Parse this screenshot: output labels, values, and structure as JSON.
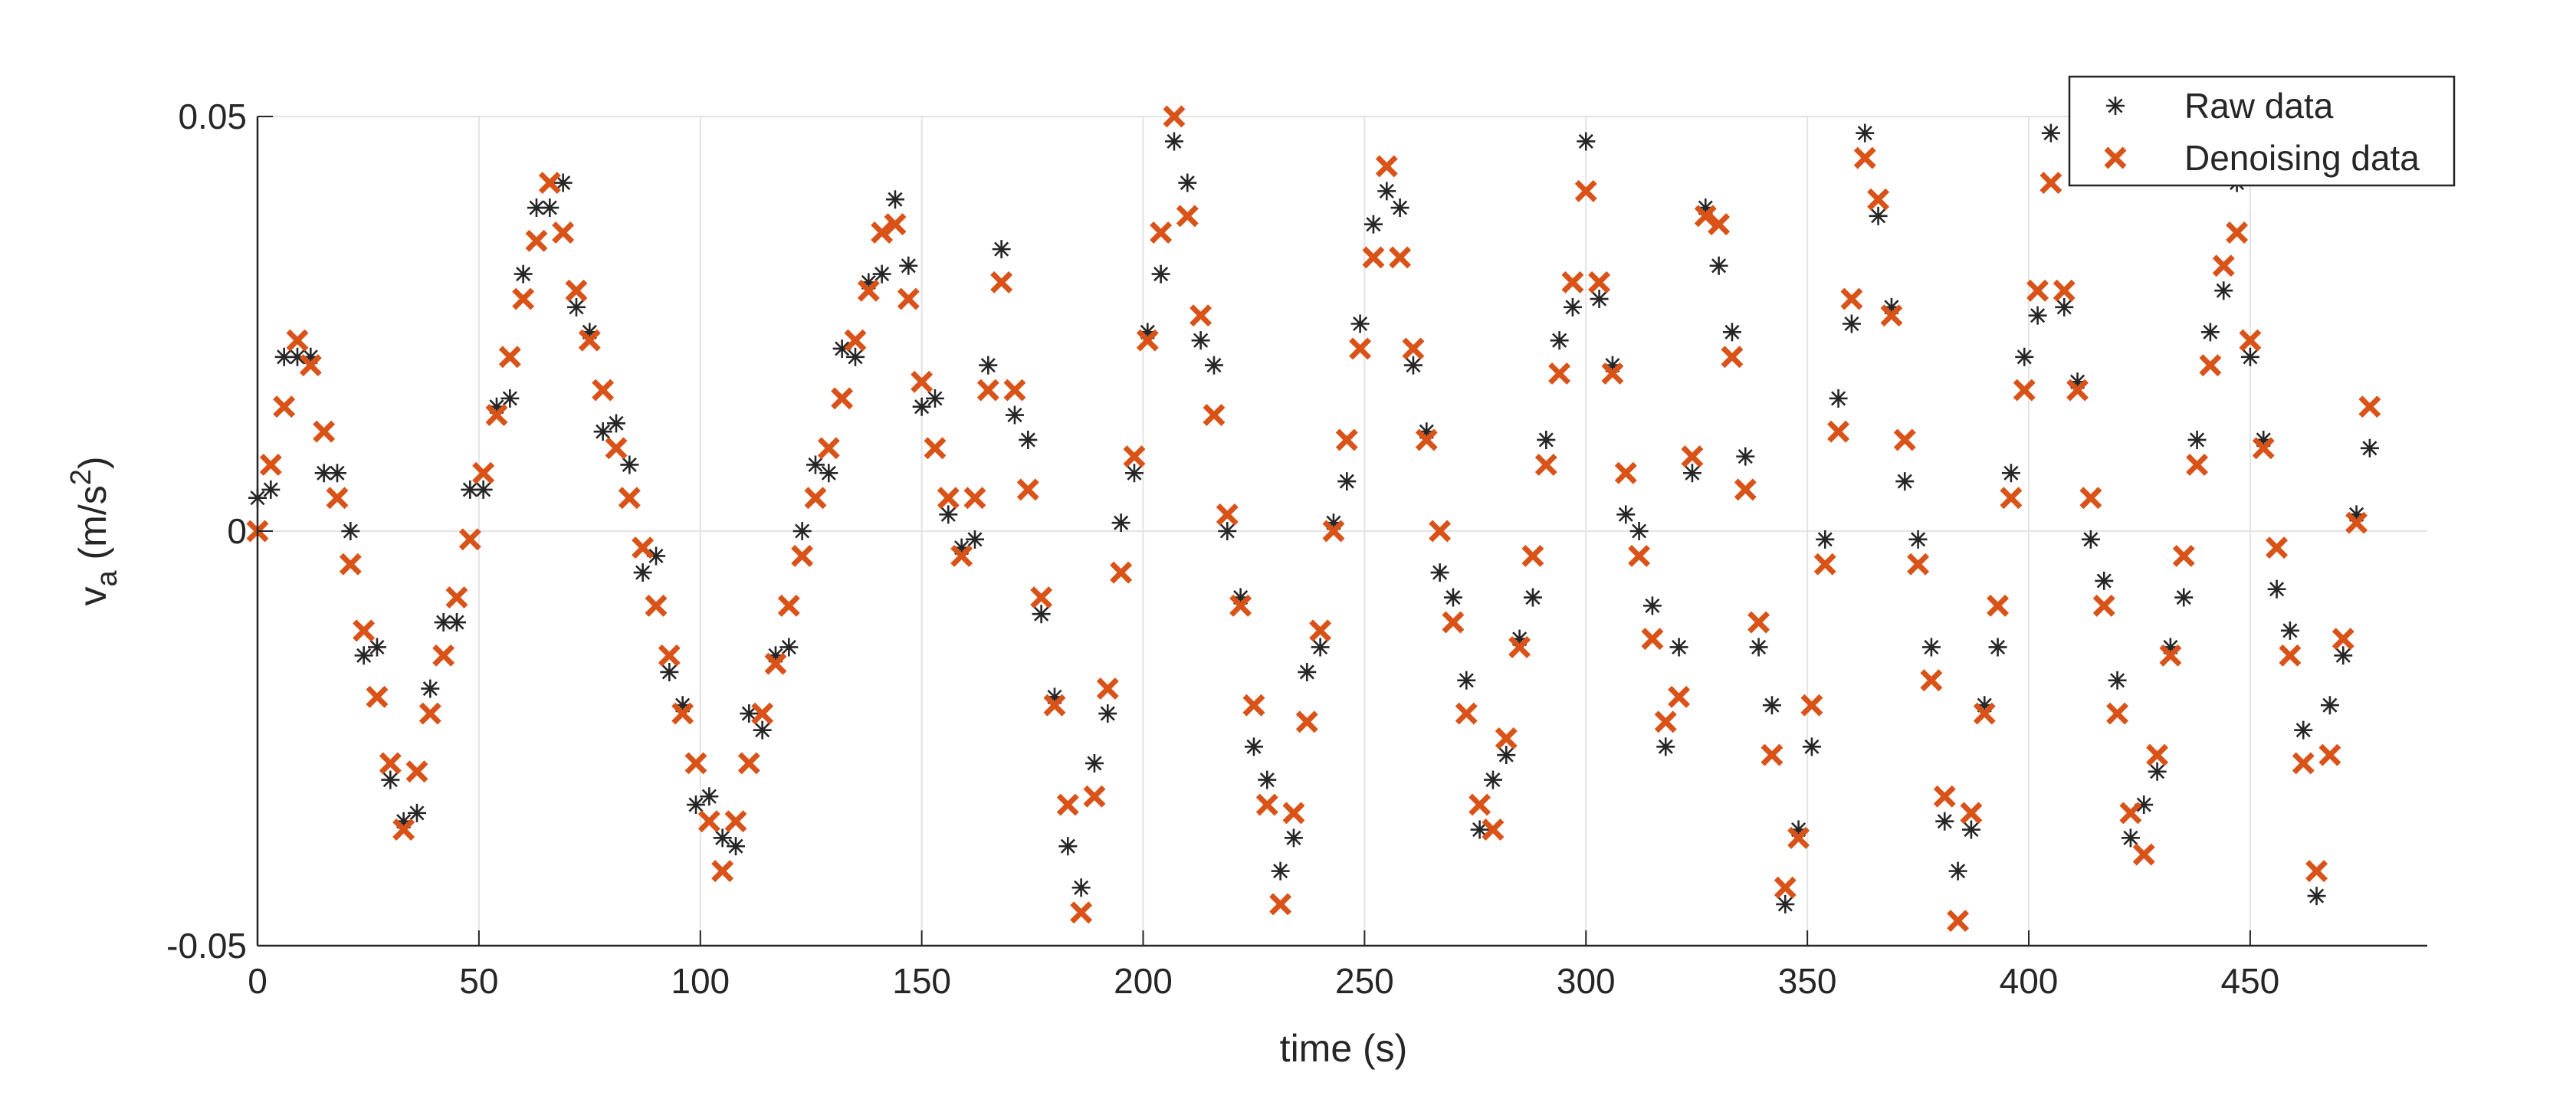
{
  "chart_data": {
    "type": "scatter",
    "xlabel": "time (s)",
    "ylabel": [
      "v",
      "a",
      " (m/s",
      "2",
      ")"
    ],
    "xlim": [
      0,
      490
    ],
    "ylim": [
      -0.05,
      0.05
    ],
    "xticks": [
      0,
      50,
      100,
      150,
      200,
      250,
      300,
      350,
      400,
      450
    ],
    "yticks": [
      -0.05,
      0,
      0.05
    ],
    "grid": true,
    "legend": "northeast",
    "x": [
      0,
      3,
      6,
      9,
      12,
      15,
      18,
      21,
      24,
      27,
      30,
      33,
      36,
      39,
      42,
      45,
      48,
      51,
      54,
      57,
      60,
      63,
      66,
      69,
      72,
      75,
      78,
      81,
      84,
      87,
      90,
      93,
      96,
      99,
      102,
      105,
      108,
      111,
      114,
      117,
      120,
      123,
      126,
      129,
      132,
      135,
      138,
      141,
      144,
      147,
      150,
      153,
      156,
      159,
      162,
      165,
      168,
      171,
      174,
      177,
      180,
      183,
      186,
      189,
      192,
      195,
      198,
      201,
      204,
      207,
      210,
      213,
      216,
      219,
      222,
      225,
      228,
      231,
      234,
      237,
      240,
      243,
      246,
      249,
      252,
      255,
      258,
      261,
      264,
      267,
      270,
      273,
      276,
      279,
      282,
      285,
      288,
      291,
      294,
      297,
      300,
      303,
      306,
      309,
      312,
      315,
      318,
      321,
      324,
      327,
      330,
      333,
      336,
      339,
      342,
      345,
      348,
      351,
      354,
      357,
      360,
      363,
      366,
      369,
      372,
      375,
      378,
      381,
      384,
      387,
      390,
      393,
      396,
      399,
      402,
      405,
      408,
      411,
      414,
      417,
      420,
      423,
      426,
      429,
      432,
      435,
      438,
      441,
      444,
      447,
      450,
      453,
      456,
      459,
      462,
      465,
      468,
      471,
      474,
      477
    ],
    "series": [
      {
        "name": "Raw data",
        "color": "#262626",
        "marker": "asterisk",
        "values": [
          0.004,
          0.005,
          0.021,
          0.021,
          0.021,
          0.007,
          0.007,
          0.0,
          -0.015,
          -0.014,
          -0.03,
          -0.035,
          -0.034,
          -0.019,
          -0.011,
          -0.011,
          0.005,
          0.005,
          0.015,
          0.016,
          0.031,
          0.039,
          0.039,
          0.042,
          0.027,
          0.024,
          0.012,
          0.013,
          0.008,
          -0.005,
          -0.003,
          -0.017,
          -0.021,
          -0.033,
          -0.032,
          -0.037,
          -0.038,
          -0.022,
          -0.024,
          -0.015,
          -0.014,
          0.0,
          0.008,
          0.007,
          0.022,
          0.021,
          0.03,
          0.031,
          0.04,
          0.032,
          0.015,
          0.016,
          0.002,
          -0.002,
          -0.001,
          0.02,
          0.034,
          0.014,
          0.011,
          -0.01,
          -0.02,
          -0.038,
          -0.043,
          -0.028,
          -0.022,
          0.001,
          0.007,
          0.024,
          0.031,
          0.047,
          0.042,
          0.023,
          0.02,
          0.0,
          -0.008,
          -0.026,
          -0.03,
          -0.041,
          -0.037,
          -0.017,
          -0.014,
          0.001,
          0.006,
          0.025,
          0.037,
          0.041,
          0.039,
          0.02,
          0.012,
          -0.005,
          -0.008,
          -0.018,
          -0.036,
          -0.03,
          -0.027,
          -0.013,
          -0.008,
          0.011,
          0.023,
          0.027,
          0.047,
          0.028,
          0.02,
          0.002,
          0.0,
          -0.009,
          -0.026,
          -0.014,
          0.007,
          0.039,
          0.032,
          0.024,
          0.009,
          -0.014,
          -0.021,
          -0.045,
          -0.036,
          -0.026,
          -0.001,
          0.016,
          0.025,
          0.048,
          0.038,
          0.027,
          0.006,
          -0.001,
          -0.014,
          -0.035,
          -0.041,
          -0.036,
          -0.021,
          -0.014,
          0.007,
          0.021,
          0.026,
          0.048,
          0.027,
          0.018,
          -0.001,
          -0.006,
          -0.018,
          -0.037,
          -0.033,
          -0.029,
          -0.014,
          -0.008,
          0.011,
          0.024,
          0.029,
          0.042,
          0.021,
          0.011,
          -0.007,
          -0.012,
          -0.024,
          -0.044,
          -0.021,
          -0.015,
          0.002,
          0.01
        ]
      },
      {
        "name": "Denoising data",
        "color": "#D95319",
        "marker": "x",
        "values": [
          0,
          0.008,
          0.015,
          0.023,
          0.02,
          0.012,
          0.004,
          -0.004,
          -0.012,
          -0.02,
          -0.028,
          -0.036,
          -0.029,
          -0.022,
          -0.015,
          -0.008,
          -0.001,
          0.007,
          0.014,
          0.021,
          0.028,
          0.035,
          0.042,
          0.036,
          0.029,
          0.023,
          0.017,
          0.01,
          0.004,
          -0.002,
          -0.009,
          -0.015,
          -0.022,
          -0.028,
          -0.035,
          -0.041,
          -0.035,
          -0.028,
          -0.022,
          -0.016,
          -0.009,
          -0.003,
          0.004,
          0.01,
          0.016,
          0.023,
          0.029,
          0.036,
          0.037,
          0.028,
          0.018,
          0.01,
          0.004,
          -0.003,
          0.004,
          0.017,
          0.03,
          0.017,
          0.005,
          -0.008,
          -0.021,
          -0.033,
          -0.046,
          -0.032,
          -0.019,
          -0.005,
          0.009,
          0.023,
          0.036,
          0.05,
          0.038,
          0.026,
          0.014,
          0.002,
          -0.009,
          -0.021,
          -0.033,
          -0.045,
          -0.034,
          -0.023,
          -0.012,
          0.0,
          0.011,
          0.022,
          0.033,
          0.044,
          0.033,
          0.022,
          0.011,
          0.0,
          -0.011,
          -0.022,
          -0.033,
          -0.036,
          -0.025,
          -0.014,
          -0.003,
          0.008,
          0.019,
          0.03,
          0.041,
          0.03,
          0.019,
          0.007,
          -0.003,
          -0.013,
          -0.023,
          -0.02,
          0.009,
          0.038,
          0.037,
          0.021,
          0.005,
          -0.011,
          -0.027,
          -0.043,
          -0.037,
          -0.021,
          -0.004,
          0.012,
          0.028,
          0.045,
          0.04,
          0.026,
          0.011,
          -0.004,
          -0.018,
          -0.032,
          -0.047,
          -0.034,
          -0.022,
          -0.009,
          0.004,
          0.017,
          0.029,
          0.042,
          0.029,
          0.017,
          0.004,
          -0.009,
          -0.022,
          -0.034,
          -0.039,
          -0.027,
          -0.015,
          -0.003,
          0.008,
          0.02,
          0.032,
          0.036,
          0.023,
          0.01,
          -0.002,
          -0.015,
          -0.028,
          -0.041,
          -0.027,
          -0.013,
          0.001,
          0.015
        ]
      }
    ]
  }
}
